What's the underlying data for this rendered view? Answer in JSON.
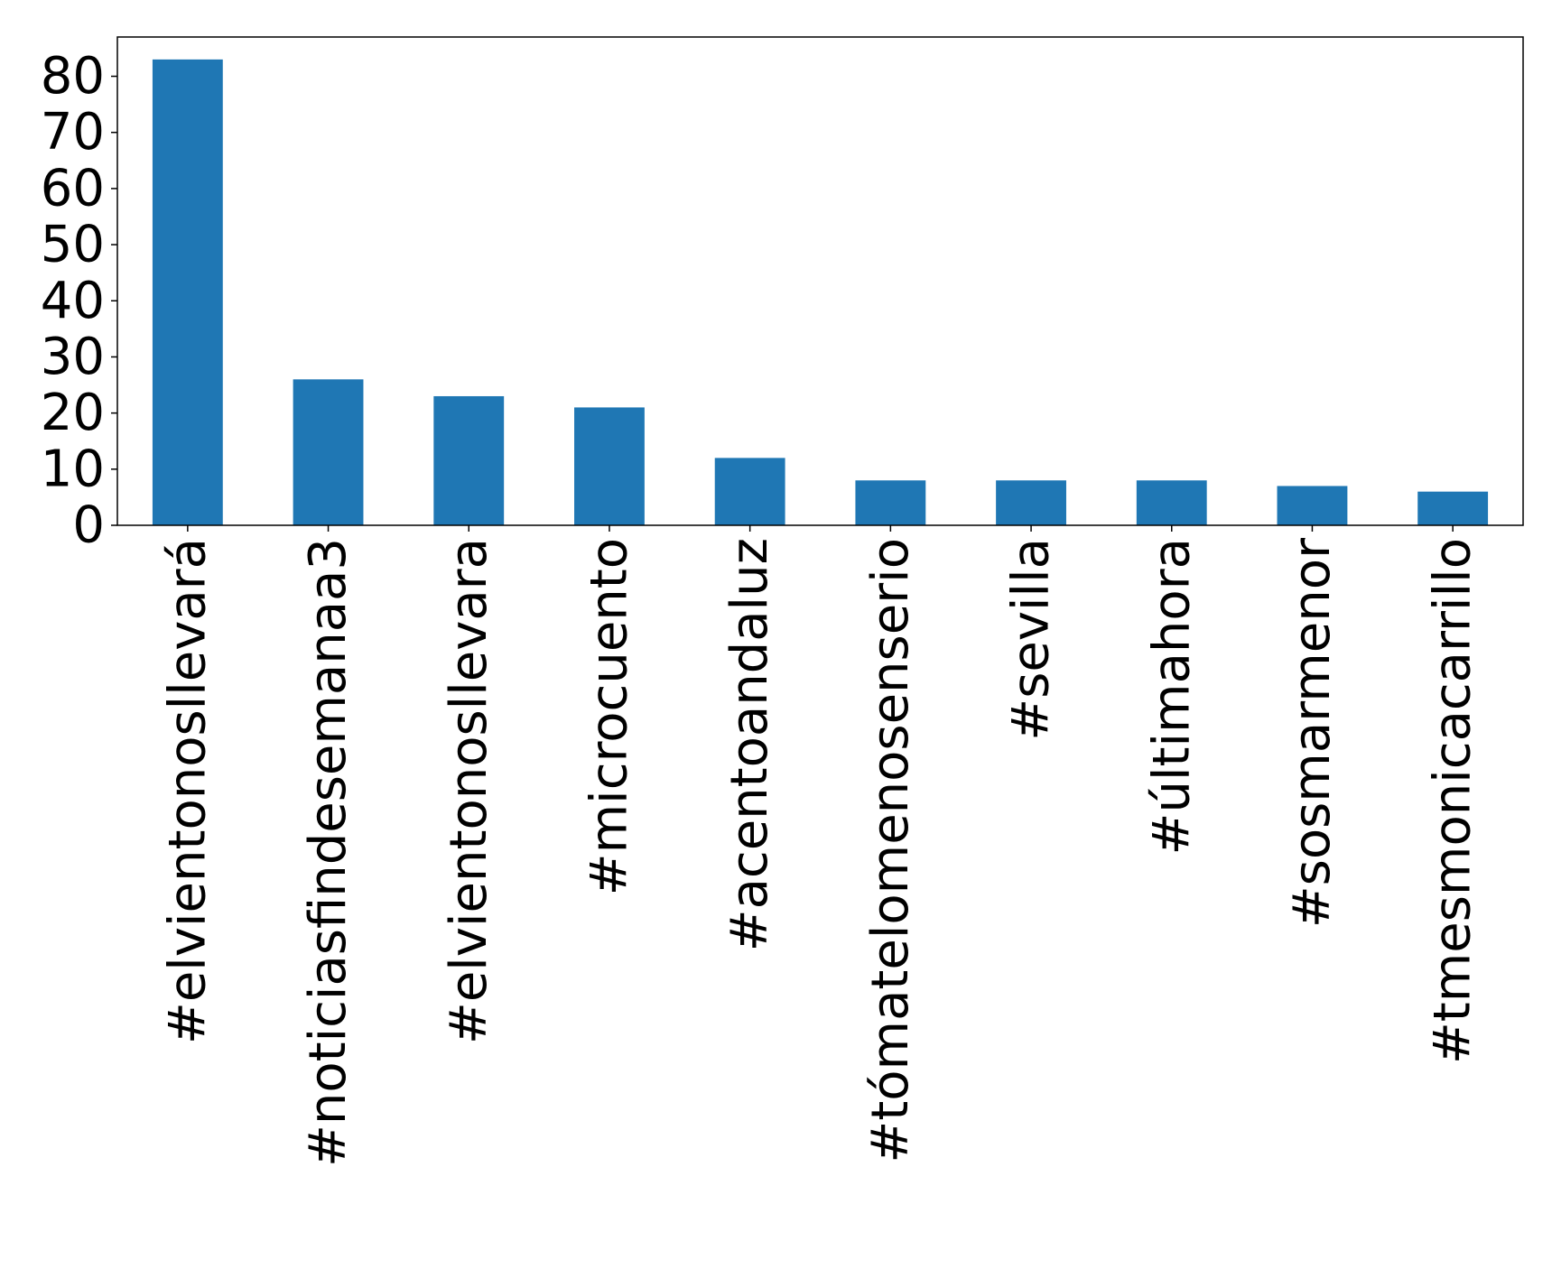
{
  "chart_data": {
    "type": "bar",
    "title": "",
    "xlabel": "",
    "ylabel": "",
    "categories": [
      "#elvientonosllevará",
      "#noticiasfindesemanaa3",
      "#elvientonosllevara",
      "#microcuento",
      "#acentoandaluz",
      "#tómatelomenosenserio",
      "#sevilla",
      "#últimahora",
      "#sosmarmenor",
      "#tmesmonicacarrillo"
    ],
    "values": [
      83,
      26,
      23,
      21,
      12,
      8,
      8,
      8,
      7,
      6
    ],
    "ylim": [
      0,
      87
    ],
    "yticks": [
      0,
      10,
      20,
      30,
      40,
      50,
      60,
      70,
      80
    ],
    "bar_color": "#1f77b4",
    "grid": false,
    "legend": "none"
  }
}
